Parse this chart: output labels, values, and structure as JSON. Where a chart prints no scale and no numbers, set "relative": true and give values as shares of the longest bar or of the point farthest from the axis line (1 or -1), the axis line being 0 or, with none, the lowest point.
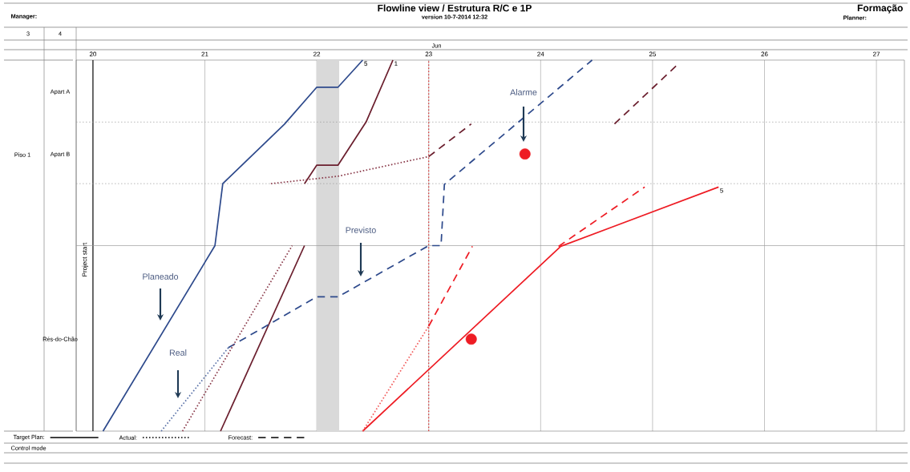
{
  "chart_data": {
    "type": "line",
    "title": "Flowline view / Estrutura R/C e 1P",
    "subtitle": "version 10-7-2014 12:32",
    "relative": true,
    "xlim": [
      19.85,
      27.25
    ],
    "xticks": [
      20,
      21,
      22,
      23,
      24,
      25,
      26,
      27
    ],
    "grid": "x",
    "marker": "none",
    "series": [
      {
        "color": "#2e4a8c",
        "line_style": "solid",
        "x": [
          20.09,
          21.09,
          21.16,
          21.71,
          22.0,
          22.19,
          22.41
        ],
        "values": [
          0,
          0.5,
          0.667,
          0.827,
          0.927,
          0.927,
          1.0
        ]
      },
      {
        "color": "#6b1f2e",
        "line_style": "solid",
        "x": [
          21.14,
          21.89
        ],
        "values": [
          0,
          0.5
        ]
      },
      {
        "color": "#6b1f2e",
        "line_style": "solid",
        "x": [
          21.89,
          22.0,
          22.19,
          22.44,
          22.68
        ],
        "values": [
          0.667,
          0.717,
          0.717,
          0.833,
          1.0
        ]
      },
      {
        "color": "#5a72a8",
        "line_style": "dotted",
        "x": [
          20.61,
          21.21
        ],
        "values": [
          0,
          0.225
        ]
      },
      {
        "color": "#2e4a8c",
        "line_style": "dashed",
        "x": [
          21.21,
          22.0,
          22.19,
          23.0,
          23.11,
          23.14,
          24.46
        ],
        "values": [
          0.225,
          0.362,
          0.362,
          0.5,
          0.5,
          0.665,
          1.0
        ]
      },
      {
        "color": "#8a3a4a",
        "line_style": "dotted",
        "x": [
          20.8,
          21.78
        ],
        "values": [
          0,
          0.5
        ]
      },
      {
        "color": "#8a3a4a",
        "line_style": "dotted",
        "x": [
          21.59,
          22.19,
          23.0
        ],
        "values": [
          0.667,
          0.687,
          0.74
        ]
      },
      {
        "color": "#6b1f2e",
        "line_style": "dashed",
        "x": [
          23.0,
          23.38
        ],
        "values": [
          0.74,
          0.828
        ]
      },
      {
        "color": "#6b1f2e",
        "line_style": "dashed",
        "x": [
          24.66,
          25.22
        ],
        "values": [
          0.828,
          0.987
        ]
      },
      {
        "color": "#ee1c24",
        "line_style": "solid",
        "x": [
          22.41,
          24.18,
          25.59
        ],
        "values": [
          0,
          0.498,
          0.658
        ]
      },
      {
        "color": "#f25a5a",
        "line_style": "dotted",
        "x": [
          22.41,
          23.0
        ],
        "values": [
          0,
          0.283
        ]
      },
      {
        "color": "#ee1c24",
        "line_style": "dashed",
        "x": [
          23.0,
          23.39
        ],
        "values": [
          0.283,
          0.498
        ]
      },
      {
        "color": "#ee1c24",
        "line_style": "dashed",
        "x": [
          24.16,
          24.93
        ],
        "values": [
          0.498,
          0.658
        ]
      },
      {
        "type": "scatter",
        "marker": "circle",
        "color": "#ee1c24",
        "x": [
          23.86,
          23.38
        ],
        "values": [
          0.747,
          0.248
        ]
      }
    ],
    "ref_lines": [
      {
        "axis": "x",
        "value": 20,
        "label": "Project start",
        "color": "#000000",
        "line_style": "solid"
      },
      {
        "axis": "x",
        "value": 23,
        "label": null,
        "color": "#e02020",
        "line_style": "dotted"
      },
      {
        "axis": "y",
        "value": 0.5,
        "label": null,
        "color": "#999999",
        "line_style": "solid"
      },
      {
        "axis": "y",
        "value": 0.667,
        "label": null,
        "color": "#999999",
        "line_style": "dotted"
      },
      {
        "axis": "y",
        "value": 0.833,
        "label": null,
        "color": "#999999",
        "line_style": "dotted"
      }
    ],
    "bands": [
      {
        "axis": "x",
        "from": 22.0,
        "to": 22.2,
        "label": null,
        "color": "#d9d9d9"
      }
    ],
    "annotations": [
      "Manager:",
      "Formação",
      "Planner:",
      "3",
      "4",
      "Jun",
      "Piso 1",
      "Target Plan:",
      "Actual:",
      "Forecast:",
      "Control mode",
      "Rés-do-Chão",
      "Apart B",
      "Apart A",
      "Planeado",
      "Real",
      "Previsto",
      "Alarme",
      {
        "text": "5",
        "x": 22.41,
        "y": 1.0
      },
      {
        "text": "1",
        "x": 22.68,
        "y": 1.0
      },
      {
        "text": "5",
        "x": 25.59,
        "y": 0.658
      }
    ]
  }
}
